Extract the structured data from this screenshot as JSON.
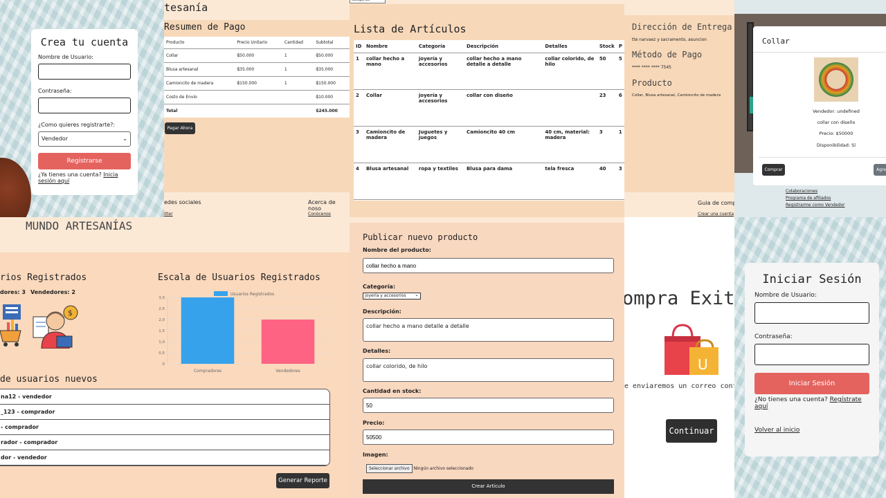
{
  "register": {
    "title": "Crea tu cuenta",
    "user_label": "Nombre de Usuario:",
    "pass_label": "Contraseña:",
    "role_label": "¿Como quieres registrarte?:",
    "role_value": "Vendedor",
    "submit": "Registrarse",
    "have_account": "¿Ya tienes una cuenta?",
    "login_link": "Inicia sesión aquí"
  },
  "payment": {
    "top_title": "tesanía",
    "title": "Resumen de Pago",
    "headers": [
      "Producto",
      "Precio Unitario",
      "Cantidad",
      "Subtotal"
    ],
    "rows": [
      [
        "Collar",
        "₲50.000",
        "1",
        "₲50.000"
      ],
      [
        "Blusa artesanal",
        "₲35.000",
        "1",
        "₲35.000"
      ],
      [
        "Camioncito de madera",
        "₲150.000",
        "1",
        "₲150.000"
      ],
      [
        "Costo de Envío",
        "",
        "",
        "₲10.000"
      ]
    ],
    "total_label": "Total",
    "total_value": "₲245.000",
    "pay_button": "Pagar Ahora",
    "footer_social": "edes sociales",
    "footer_about": "Acerca de noso",
    "footer_link1": "itter",
    "footer_link2": "Conócenos"
  },
  "articles": {
    "title": "Lista de Artículos",
    "headers": [
      "ID",
      "Nombre",
      "Categoría",
      "Descripción",
      "Detalles",
      "Stock",
      "P"
    ],
    "rows": [
      [
        "1",
        "collar hecho a mano",
        "joyería y accesorios",
        "collar hecho a mano detalle a detalle",
        "collar colorido, de hilo",
        "50",
        "5"
      ],
      [
        "2",
        "Collar",
        "joyería y accesorios",
        "collar con diseño",
        "",
        "23",
        "6"
      ],
      [
        "3",
        "Camioncito de madera",
        "Juguetes y juegos",
        "Camioncito 40 cm",
        "40 cm, material: madera",
        "3",
        "1"
      ],
      [
        "4",
        "Blusa artesanal",
        "ropa y textiles",
        "Blusa para dama",
        "tela fresca",
        "40",
        "3"
      ]
    ],
    "top_select": "categorias"
  },
  "delivery": {
    "address_title": "Dirección de Entrega",
    "address": "tte narvaez y sacramento, asuncion",
    "method_title": "Método de Pago",
    "card": "**** **** **** 7545",
    "product_title": "Producto",
    "products": "Collar, Blusa artesanal, Camioncito de madera",
    "footer_guide": "Guia de comp",
    "footer_link": "Crear una cuenta"
  },
  "modal": {
    "title": "Collar",
    "seller": "Vendedor: undefined",
    "desc": "collar con diseño",
    "price": "Precio: $50000",
    "availability": "Disponibilidad: Sí",
    "buy": "Comprar",
    "add": "Agre",
    "links": [
      "Colaboraciones",
      "Programa de afiliados",
      "Registrarme como Vendedor"
    ]
  },
  "admin": {
    "brand": "MUNDO ARTESANÍAS",
    "users_title": "rios Registrados",
    "buyers": "dores: 3",
    "sellers": "Vendedores: 2",
    "scale_title": "Escala de Usuarios Registrados",
    "new_users_title": "de usuarios nuevos",
    "new_users": [
      "na12 - vendedor",
      "_123 - comprador",
      "- comprador",
      "rador - comprador",
      "dor - vendedor"
    ],
    "report_button": "Generar Reporte"
  },
  "chart_data": {
    "type": "bar",
    "categories": [
      "Compradores",
      "Vendedores"
    ],
    "series": [
      {
        "name": "Usuarios Registrados",
        "values": [
          3,
          2
        ]
      }
    ],
    "ylim": [
      0,
      3
    ],
    "yticks": [
      "0",
      "0,5",
      "1,0",
      "1,5",
      "2,0",
      "2,5",
      "3,0"
    ],
    "colors": [
      "#36a2eb",
      "#ff6384"
    ],
    "legend": "top"
  },
  "publish": {
    "title": "Publicar nuevo producto",
    "name_label": "Nombre del producto:",
    "name_value": "collar hecho a mano",
    "cat_label": "Categoría:",
    "cat_value": "joyería y accesorios",
    "desc_label": "Descripción:",
    "desc_value": "collar hecho a mano detalle a detalle",
    "details_label": "Detalles:",
    "details_value": "collar colorido, de hilo",
    "stock_label": "Cantidad en stock:",
    "stock_value": "50",
    "price_label": "Precio:",
    "price_value": "50500",
    "image_label": "Imagen:",
    "file_button": "Seleccionar archivo",
    "file_status": "Ningún archivo seleccionado",
    "submit": "Crear Artículo"
  },
  "success": {
    "title": "ompra Exit",
    "message": "e enviaremos un correo confirm",
    "continue": "Continuar"
  },
  "login": {
    "title": "Iniciar Sesión",
    "user_label": "Nombre de Usuario:",
    "pass_label": "Contraseña:",
    "submit": "Iniciar Sesión",
    "no_account": "¿No tienes una cuenta?",
    "register_link": "Regístrate aquí",
    "back": "Volver al inicio"
  }
}
